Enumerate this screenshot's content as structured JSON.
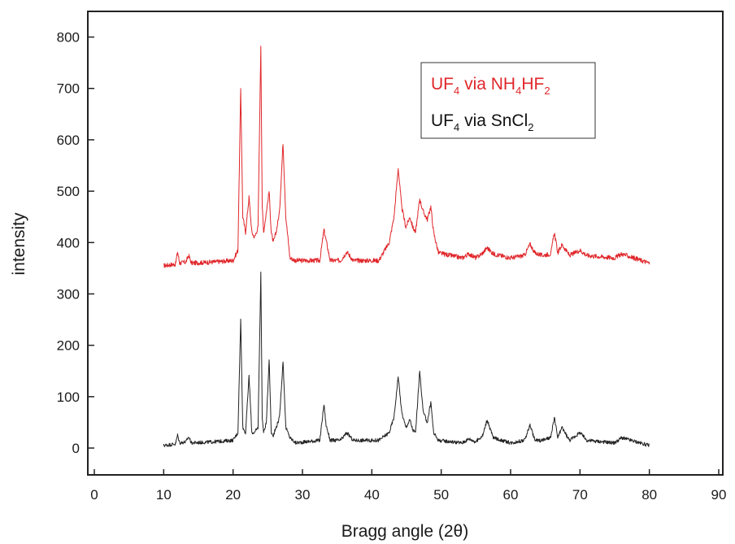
{
  "chart_data": {
    "type": "line",
    "xlabel": "Bragg angle (2θ)",
    "ylabel": "intensity",
    "xlim": [
      0,
      90
    ],
    "ylim": [
      -50,
      860
    ],
    "x_ticks": [
      "0",
      "10",
      "20",
      "30",
      "40",
      "50",
      "60",
      "70",
      "80",
      "90"
    ],
    "y_ticks": [
      "0",
      "100",
      "200",
      "300",
      "400",
      "500",
      "600",
      "700",
      "800"
    ],
    "legend_position": "top-right",
    "legend": [
      {
        "base": "UF",
        "sub1": "4",
        "mid": " via NH",
        "sub2": "4",
        "mid2": "HF",
        "sub3": "2",
        "color": "#e0262a"
      },
      {
        "base": "UF",
        "sub1": "4",
        "mid": " via SnCl",
        "sub2": "2",
        "color": "#222222"
      }
    ],
    "series": [
      {
        "name": "UF4 via NH4HF2",
        "color": "#e0262a",
        "baseline": 355,
        "x": [
          10,
          11.7,
          12.0,
          12.3,
          13.2,
          13.6,
          14.0,
          17.0,
          20.0,
          20.7,
          21.1,
          21.4,
          21.8,
          22.3,
          22.7,
          23.1,
          23.6,
          24.0,
          24.2,
          24.4,
          24.8,
          25.2,
          25.5,
          25.8,
          26.2,
          26.7,
          27.2,
          27.6,
          28.2,
          29.0,
          32.5,
          33.1,
          33.4,
          34.0,
          35.5,
          36.4,
          37.3,
          41.0,
          42.5,
          43.2,
          43.8,
          44.3,
          44.9,
          45.5,
          45.9,
          46.3,
          46.9,
          47.4,
          48.0,
          48.5,
          48.9,
          49.6,
          53.0,
          54.0,
          55.0,
          56.0,
          56.6,
          57.5,
          60.0,
          62.0,
          62.8,
          63.5,
          64.5,
          65.8,
          66.3,
          66.8,
          67.4,
          68.5,
          70.0,
          71.0,
          75.0,
          76.0,
          80.0
        ],
        "y": [
          355,
          358,
          382,
          360,
          362,
          375,
          360,
          362,
          365,
          385,
          700,
          450,
          420,
          488,
          420,
          410,
          430,
          785,
          470,
          420,
          460,
          500,
          420,
          400,
          420,
          460,
          595,
          450,
          370,
          365,
          365,
          425,
          405,
          365,
          365,
          382,
          365,
          365,
          400,
          450,
          545,
          470,
          430,
          450,
          430,
          420,
          485,
          460,
          445,
          470,
          420,
          380,
          370,
          378,
          370,
          380,
          390,
          378,
          370,
          375,
          397,
          380,
          375,
          378,
          420,
          380,
          396,
          375,
          385,
          375,
          370,
          378,
          360
        ]
      },
      {
        "name": "UF4 via SnCl2",
        "color": "#222222",
        "baseline": 5,
        "x": [
          10,
          11.7,
          12.0,
          12.3,
          13.2,
          13.6,
          14.0,
          17.0,
          20.0,
          20.7,
          21.1,
          21.4,
          21.8,
          22.3,
          22.7,
          23.1,
          23.6,
          24.0,
          24.2,
          24.4,
          24.8,
          25.2,
          25.5,
          25.8,
          26.2,
          26.7,
          27.2,
          27.6,
          28.2,
          29.0,
          32.5,
          33.1,
          33.4,
          34.0,
          35.5,
          36.4,
          37.3,
          41.0,
          42.5,
          43.2,
          43.8,
          44.3,
          44.9,
          45.5,
          45.9,
          46.3,
          46.9,
          47.4,
          48.0,
          48.5,
          48.9,
          49.6,
          53.0,
          54.0,
          55.0,
          56.0,
          56.6,
          57.5,
          60.0,
          62.0,
          62.8,
          63.5,
          64.5,
          65.8,
          66.3,
          66.8,
          67.4,
          68.5,
          70.0,
          71.0,
          75.0,
          76.0,
          80.0
        ],
        "y": [
          5,
          8,
          25,
          10,
          12,
          22,
          10,
          12,
          15,
          30,
          250,
          40,
          30,
          140,
          30,
          30,
          40,
          340,
          60,
          30,
          50,
          175,
          30,
          25,
          40,
          60,
          170,
          40,
          20,
          10,
          15,
          85,
          45,
          15,
          15,
          30,
          15,
          15,
          30,
          60,
          140,
          70,
          40,
          55,
          35,
          30,
          150,
          70,
          50,
          90,
          30,
          15,
          10,
          18,
          12,
          25,
          55,
          20,
          10,
          15,
          45,
          15,
          15,
          20,
          60,
          20,
          40,
          15,
          30,
          15,
          10,
          20,
          5
        ]
      }
    ]
  }
}
